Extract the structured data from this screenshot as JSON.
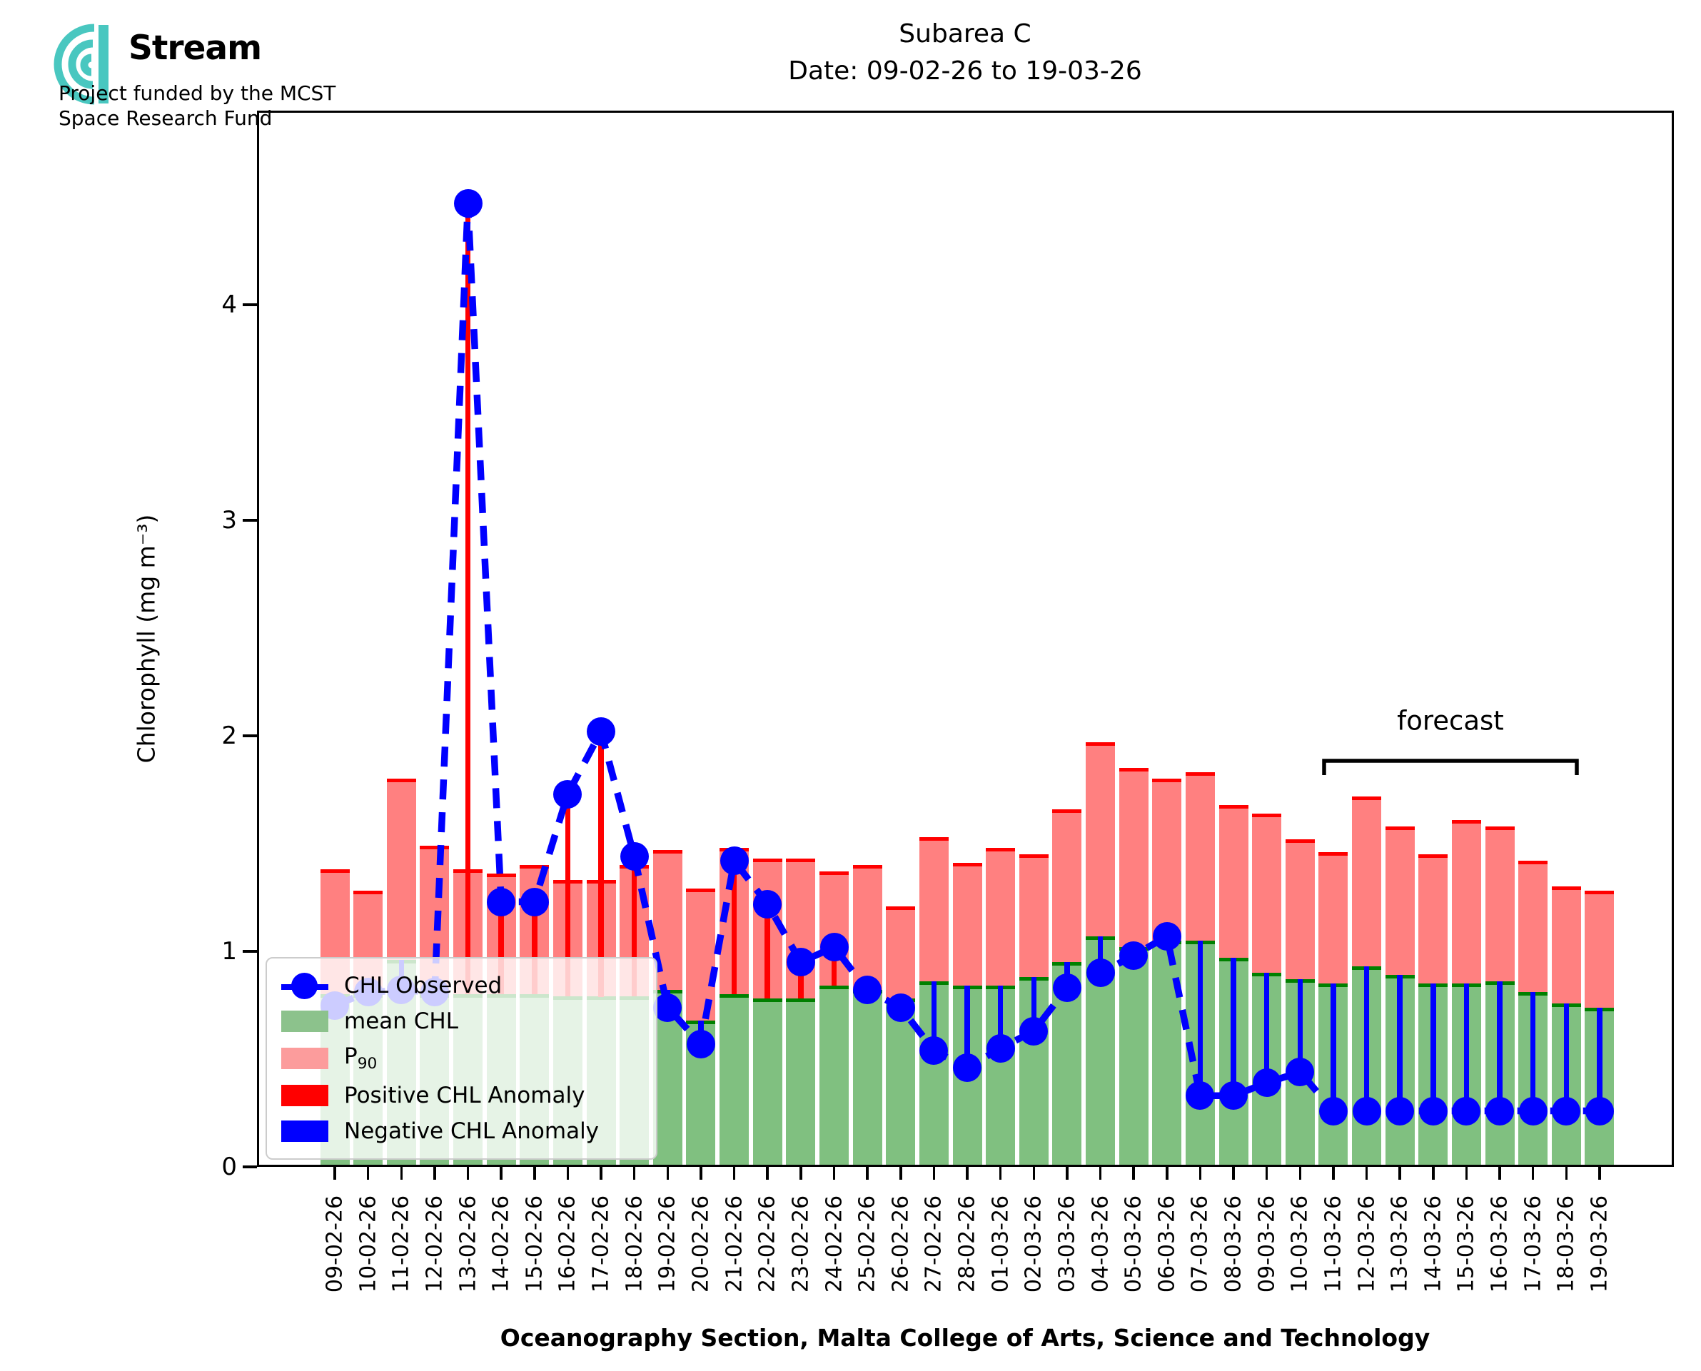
{
  "header": {
    "logo": {
      "brand": "Stream",
      "funding_line1": "Project funded by the MCST",
      "funding_line2": "Space Research Fund",
      "accent_color": "#49c7c0"
    },
    "title_line1": "Subarea C",
    "title_line2": "Date: 09-02-26 to 19-03-26"
  },
  "chart_data": {
    "type": "bar",
    "title": "Subarea C",
    "subtitle": "Date: 09-02-26 to 19-03-26",
    "xlabel": "Oceanography Section, Malta College of Arts, Science and Technology",
    "ylabel": "Chlorophyll (mg m⁻³)",
    "ylim": [
      0,
      4.9
    ],
    "yticks": [
      0,
      1,
      2,
      3,
      4
    ],
    "grid": false,
    "legend_position": "lower left",
    "categories": [
      "09-02-26",
      "10-02-26",
      "11-02-26",
      "12-02-26",
      "13-02-26",
      "14-02-26",
      "15-02-26",
      "16-02-26",
      "17-02-26",
      "18-02-26",
      "19-02-26",
      "20-02-26",
      "21-02-26",
      "22-02-26",
      "23-02-26",
      "24-02-26",
      "25-02-26",
      "26-02-26",
      "27-02-26",
      "28-02-26",
      "01-03-26",
      "02-03-26",
      "03-03-26",
      "04-03-26",
      "05-03-26",
      "06-03-26",
      "07-03-26",
      "08-03-26",
      "09-03-26",
      "10-03-26",
      "11-03-26",
      "12-03-26",
      "13-03-26",
      "14-03-26",
      "15-03-26",
      "16-03-26",
      "17-03-26",
      "18-03-26",
      "19-03-26"
    ],
    "series": [
      {
        "name": "CHL Observed",
        "type": "line",
        "color": "#0000ff",
        "values": [
          0.75,
          0.81,
          0.82,
          0.81,
          4.47,
          1.23,
          1.23,
          1.73,
          2.02,
          1.44,
          0.74,
          0.57,
          1.42,
          1.22,
          0.95,
          1.02,
          0.82,
          0.74,
          0.54,
          0.46,
          0.55,
          0.63,
          0.83,
          0.9,
          0.98,
          1.07,
          0.33,
          0.33,
          0.39,
          0.44,
          0.26,
          0.26,
          0.26,
          0.26,
          0.26,
          0.26,
          0.26,
          0.26,
          0.26
        ]
      },
      {
        "name": "mean CHL",
        "type": "bar",
        "fill": "#80c080",
        "edge": "#008000",
        "values": [
          0.8,
          0.8,
          0.96,
          0.8,
          0.8,
          0.8,
          0.8,
          0.79,
          0.79,
          0.79,
          0.82,
          0.68,
          0.8,
          0.78,
          0.78,
          0.84,
          0.82,
          0.78,
          0.86,
          0.84,
          0.84,
          0.88,
          0.95,
          1.07,
          1.02,
          1.05,
          1.05,
          0.97,
          0.9,
          0.87,
          0.85,
          0.93,
          0.89,
          0.85,
          0.85,
          0.86,
          0.81,
          0.76,
          0.74
        ]
      },
      {
        "name": "P90",
        "type": "bar",
        "fill": "#ff8080",
        "edge": "#ff0000",
        "values": [
          1.38,
          1.28,
          1.8,
          1.49,
          1.38,
          1.36,
          1.4,
          1.33,
          1.33,
          1.4,
          1.47,
          1.29,
          1.48,
          1.43,
          1.43,
          1.37,
          1.4,
          1.21,
          1.53,
          1.41,
          1.48,
          1.45,
          1.66,
          1.97,
          1.85,
          1.8,
          1.83,
          1.68,
          1.64,
          1.52,
          1.46,
          1.72,
          1.58,
          1.45,
          1.61,
          1.58,
          1.42,
          1.3,
          1.28
        ]
      },
      {
        "name": "Positive CHL Anomaly",
        "type": "anomaly-segment",
        "color": "#ff0000"
      },
      {
        "name": "Negative CHL Anomaly",
        "type": "anomaly-segment",
        "color": "#0000ff"
      }
    ],
    "annotations": {
      "forecast": {
        "label": "forecast",
        "from": "11-03-26",
        "to": "19-03-26"
      }
    }
  },
  "legend": {
    "items": [
      {
        "label": "CHL Observed",
        "swatch": "line-marker",
        "color": "#0000ff"
      },
      {
        "label": "mean CHL",
        "swatch": "rect",
        "color": "#8cc28c"
      },
      {
        "label": "P",
        "sub": "90",
        "swatch": "rect",
        "color": "#fc9c9c"
      },
      {
        "label": "Positive CHL Anomaly",
        "swatch": "rect",
        "color": "#ff0000"
      },
      {
        "label": "Negative CHL Anomaly",
        "swatch": "rect",
        "color": "#0000ff"
      }
    ]
  }
}
